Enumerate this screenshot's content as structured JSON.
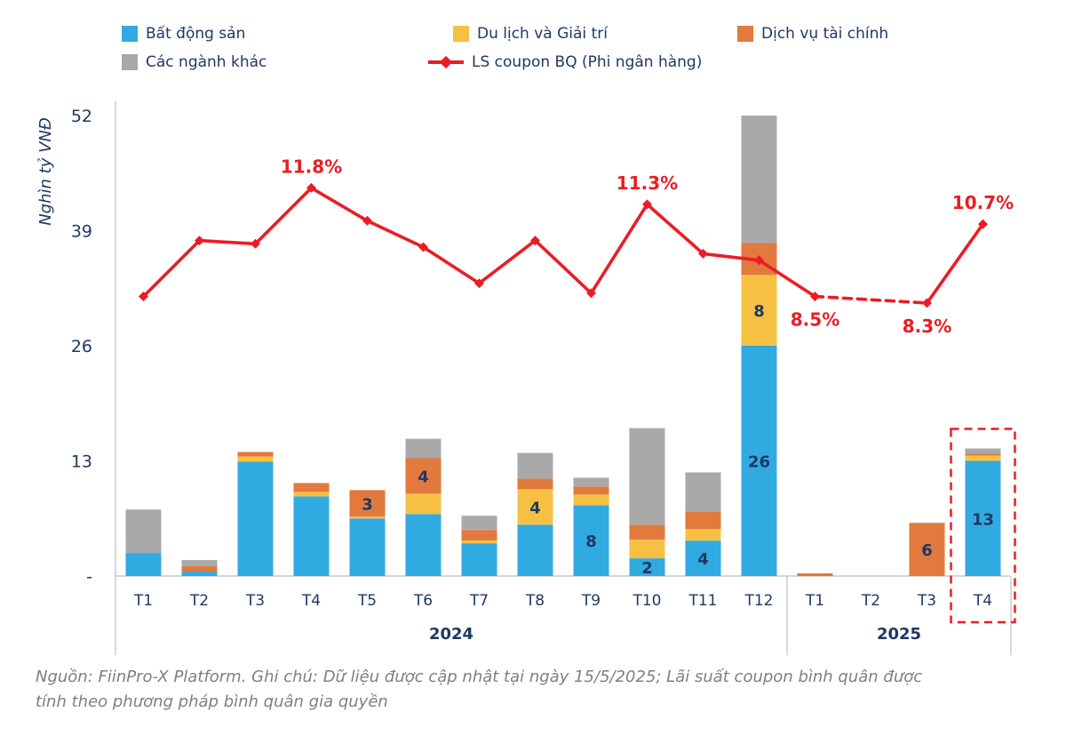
{
  "legend": {
    "items": [
      {
        "label": "Bất động sản",
        "color": "#31AAE1",
        "marker": "square"
      },
      {
        "label": "Du lịch và Giải trí",
        "color": "#F6C143",
        "marker": "square"
      },
      {
        "label": "Dịch vụ tài chính",
        "color": "#E2793D",
        "marker": "square"
      },
      {
        "label": "Các ngành khác",
        "color": "#A9A9A9",
        "marker": "square"
      },
      {
        "label": "LS coupon BQ (Phi ngân hàng)",
        "color": "#EC1C24",
        "marker": "line-diamond"
      }
    ]
  },
  "chart_data": {
    "type": "bar",
    "subtype": "stacked-bars-with-line",
    "ylabel": "Nghìn tỷ VNĐ",
    "ylim": [
      0,
      52
    ],
    "yticks": [
      {
        "value": 0,
        "label": "-"
      },
      {
        "value": 13,
        "label": "13"
      },
      {
        "value": 26,
        "label": "26"
      },
      {
        "value": 39,
        "label": "39"
      },
      {
        "value": 52,
        "label": "52"
      }
    ],
    "categories": [
      "T1",
      "T2",
      "T3",
      "T4",
      "T5",
      "T6",
      "T7",
      "T8",
      "T9",
      "T10",
      "T11",
      "T12",
      "T1",
      "T2",
      "T3",
      "T4"
    ],
    "year_groups": [
      {
        "label": "2024",
        "from": 0,
        "to": 11
      },
      {
        "label": "2025",
        "from": 12,
        "to": 15
      }
    ],
    "series": [
      {
        "name": "Bất động sản",
        "color": "#31AAE1",
        "values": [
          2.6,
          0.5,
          12.9,
          9.0,
          6.5,
          7.0,
          3.7,
          5.8,
          8,
          2,
          4,
          26,
          0,
          0,
          0,
          13
        ]
      },
      {
        "name": "Du lịch và Giải trí",
        "color": "#F6C143",
        "values": [
          0,
          0,
          0.6,
          0.5,
          0.2,
          2.3,
          0.3,
          4,
          1.2,
          2.1,
          1.3,
          8,
          0,
          0,
          0,
          0.6
        ]
      },
      {
        "name": "Dịch vụ tài chính",
        "color": "#E2793D",
        "values": [
          0,
          0.6,
          0.5,
          1.0,
          3,
          4,
          1.2,
          1.2,
          0.9,
          1.7,
          2.0,
          3.6,
          0.3,
          0,
          6,
          0.2
        ]
      },
      {
        "name": "Các ngành khác",
        "color": "#A9A9A9",
        "values": [
          4.9,
          0.7,
          0,
          0,
          0,
          2.2,
          1.6,
          2.9,
          1.0,
          10.9,
          4.4,
          14.4,
          0,
          0,
          0,
          0.6
        ]
      }
    ],
    "bar_labels": [
      {
        "cat": 4,
        "series": 2,
        "text": "3"
      },
      {
        "cat": 5,
        "series": 2,
        "text": "4"
      },
      {
        "cat": 7,
        "series": 1,
        "text": "4"
      },
      {
        "cat": 8,
        "series": 0,
        "text": "8"
      },
      {
        "cat": 9,
        "series": 0,
        "text": "2"
      },
      {
        "cat": 10,
        "series": 0,
        "text": "4"
      },
      {
        "cat": 11,
        "series": 0,
        "text": "26"
      },
      {
        "cat": 11,
        "series": 1,
        "text": "8"
      },
      {
        "cat": 14,
        "series": 2,
        "text": "6"
      },
      {
        "cat": 15,
        "series": 0,
        "text": "13"
      }
    ],
    "secondary_axis": {
      "min": 0,
      "max": 14,
      "unit": "%"
    },
    "line": {
      "name": "LS coupon BQ (Phi ngân hàng)",
      "color": "#EC1C24",
      "values": [
        8.5,
        10.2,
        10.1,
        11.8,
        10.8,
        10.0,
        8.9,
        10.2,
        8.6,
        11.3,
        9.8,
        9.6,
        8.5,
        null,
        8.3,
        10.7
      ],
      "dashed": [
        [
          12,
          14
        ]
      ],
      "annotations": [
        {
          "at": 3,
          "text": "11.8%",
          "position": "above"
        },
        {
          "at": 9,
          "text": "11.3%",
          "position": "above"
        },
        {
          "at": 12,
          "text": "8.5%",
          "position": "below"
        },
        {
          "at": 14,
          "text": "8.3%",
          "position": "below"
        },
        {
          "at": 15,
          "text": "10.7%",
          "position": "above"
        }
      ]
    },
    "highlight": {
      "cat": 15,
      "style": "red-dashed-box"
    }
  },
  "footer": {
    "line1": "Nguồn: FiinPro-X Platform. Ghi chú: Dữ liệu được cập nhật tại ngày 15/5/2025; Lãi suất coupon bình quân được",
    "line2": "tính theo phương pháp bình quân gia quyền"
  }
}
